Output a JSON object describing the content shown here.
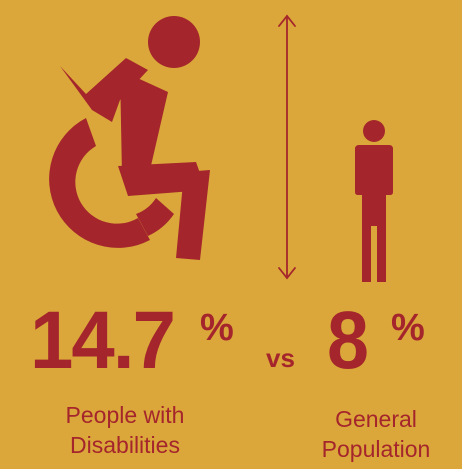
{
  "icons": {
    "wheelchair": "accessible-wheelchair-icon",
    "person": "standing-person-icon",
    "height_arrow": "double-headed-vertical-arrow-icon"
  },
  "colors": {
    "background": "#dba73a",
    "accent": "#a4262c"
  },
  "stats": {
    "left": {
      "value": "14.7",
      "unit": "%",
      "label_line1": "People with",
      "label_line2": "Disabilities"
    },
    "comparator": "vs",
    "right": {
      "value": "8",
      "unit": "%",
      "label_line1": "General",
      "label_line2": "Population"
    }
  }
}
